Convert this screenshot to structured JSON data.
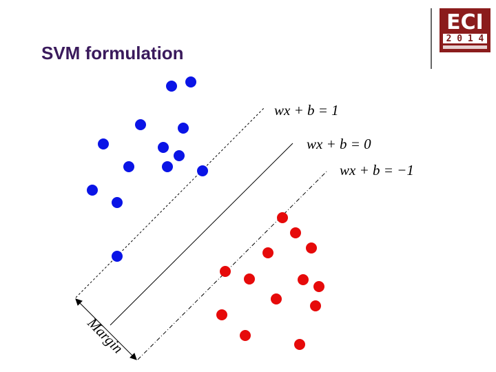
{
  "header": {
    "title": "SVM formulation"
  },
  "logo": {
    "name": "ECI",
    "year": "2 0 1 4"
  },
  "diagram": {
    "equations": [
      "wx + b = 1",
      "wx + b = 0",
      "wx + b = −1"
    ],
    "margin_label": "Margin"
  }
}
